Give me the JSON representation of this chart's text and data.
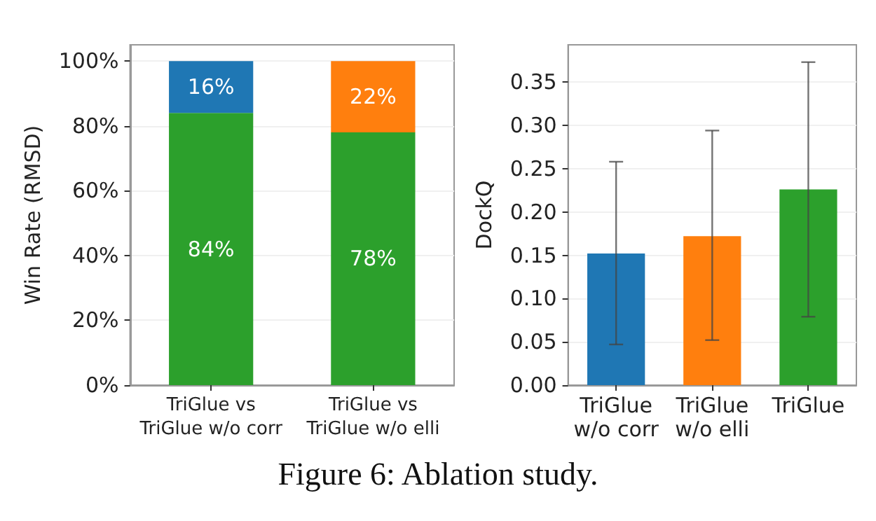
{
  "chart_data": [
    {
      "type": "bar",
      "stacked": true,
      "ylabel": "Win Rate (RMSD)",
      "categories": [
        "TriGlue vs\nTriGlue w/o corr",
        "TriGlue vs\nTriGlue w/o elli"
      ],
      "series": [
        {
          "color": "#2ca02c",
          "values": [
            84,
            78
          ],
          "value_labels": [
            "84%",
            "78%"
          ]
        },
        {
          "colors": [
            "#1f77b4",
            "#ff7f0e"
          ],
          "values": [
            16,
            22
          ],
          "value_labels": [
            "16%",
            "22%"
          ]
        }
      ],
      "ylim": [
        0,
        105
      ],
      "yticks": [
        {
          "value": 0,
          "label": "0%"
        },
        {
          "value": 20,
          "label": "20%"
        },
        {
          "value": 40,
          "label": "40%"
        },
        {
          "value": 60,
          "label": "60%"
        },
        {
          "value": 80,
          "label": "80%"
        },
        {
          "value": 100,
          "label": "100%"
        }
      ],
      "grid": "y",
      "annotations": [
        "Figure 6: Ablation study."
      ]
    },
    {
      "type": "bar",
      "ylabel": "DockQ",
      "categories": [
        "TriGlue\nw/o corr",
        "TriGlue\nw/o elli",
        "TriGlue"
      ],
      "values": [
        0.152,
        0.172,
        0.226
      ],
      "colors": [
        "#1f77b4",
        "#ff7f0e",
        "#2ca02c"
      ],
      "errors": [
        [
          0.047,
          0.258
        ],
        [
          0.052,
          0.294
        ],
        [
          0.079,
          0.373
        ]
      ],
      "ylim": [
        0,
        0.393
      ],
      "yticks": [
        {
          "value": 0,
          "label": "0.00"
        },
        {
          "value": 0.05,
          "label": "0.05"
        },
        {
          "value": 0.1,
          "label": "0.10"
        },
        {
          "value": 0.15,
          "label": "0.15"
        },
        {
          "value": 0.2,
          "label": "0.20"
        },
        {
          "value": 0.25,
          "label": "0.25"
        },
        {
          "value": 0.3,
          "label": "0.30"
        },
        {
          "value": 0.35,
          "label": "0.35"
        }
      ],
      "grid": "y"
    }
  ]
}
